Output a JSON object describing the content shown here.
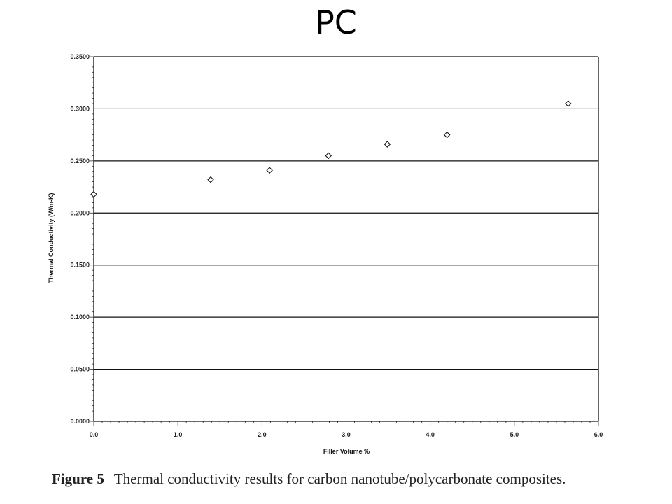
{
  "slide": {
    "title": "PC"
  },
  "caption": {
    "label": "Figure 5",
    "text": "Thermal conductivity results for carbon nanotube/polycarbonate composites."
  },
  "chart_data": {
    "type": "scatter",
    "title": "",
    "xlabel": "Filler Volume %",
    "ylabel": "Thermal Conductivity (W/m-K)",
    "xlim": [
      0,
      6
    ],
    "ylim": [
      0,
      0.35
    ],
    "x_ticks": [
      "0.0",
      "1.0",
      "2.0",
      "3.0",
      "4.0",
      "5.0",
      "6.0"
    ],
    "y_ticks": [
      "0.0000",
      "0.0500",
      "0.1000",
      "0.1500",
      "0.2000",
      "0.2500",
      "0.3000",
      "0.3500"
    ],
    "grid": "horizontal",
    "marker": "hollow diamond",
    "series": [
      {
        "points": [
          {
            "x": 0.0,
            "y": 0.218
          },
          {
            "x": 1.39,
            "y": 0.232
          },
          {
            "x": 2.09,
            "y": 0.241
          },
          {
            "x": 2.79,
            "y": 0.255
          },
          {
            "x": 3.49,
            "y": 0.266
          },
          {
            "x": 4.2,
            "y": 0.275
          },
          {
            "x": 5.64,
            "y": 0.305
          }
        ]
      }
    ]
  }
}
